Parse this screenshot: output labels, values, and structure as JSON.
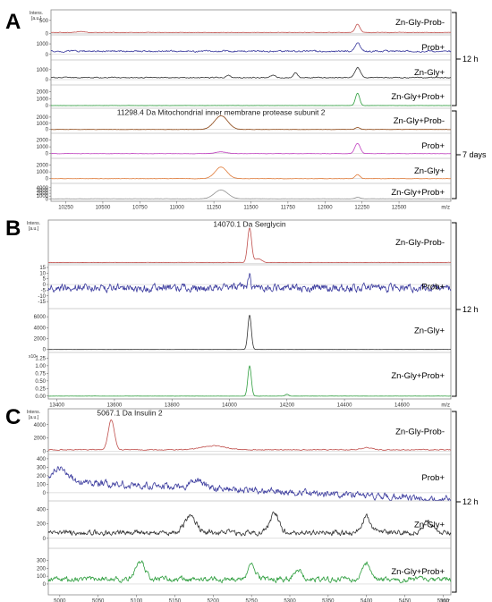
{
  "chart_data": [
    {
      "panel": "A",
      "type": "line",
      "y_axis_caption": [
        "Intens.",
        "[a.u.]"
      ],
      "x_unit": "m/z",
      "xlim": [
        10150,
        12850
      ],
      "x_ticks": [
        10250,
        10500,
        10750,
        11000,
        11250,
        11500,
        11750,
        12000,
        12250,
        12500
      ],
      "annotation": {
        "text": "11298.4 Da Mitochondrial inner membrane protease subunit 2",
        "x": 11298.4
      },
      "groups": [
        {
          "label": "12 h",
          "first": 0,
          "last": 3
        },
        {
          "label": "7 days",
          "first": 4,
          "last": 7
        }
      ],
      "series": [
        {
          "name": "Zn-Gly-Prob-",
          "color": "#c0504d",
          "ylim": [
            0,
            800
          ],
          "y_ticks": [
            0,
            500
          ],
          "baseline": 40,
          "noise": 18,
          "peaks": [
            [
              12220,
              320,
              16
            ],
            [
              10350,
              40,
              25
            ]
          ]
        },
        {
          "name": "Prob+",
          "color": "#3b3b9e",
          "ylim": [
            -400,
            1600
          ],
          "y_ticks": [
            0,
            1000
          ],
          "baseline": 300,
          "noise": 140,
          "peaks": [
            [
              12220,
              800,
              18
            ]
          ]
        },
        {
          "name": "Zn-Gly+",
          "color": "#333333",
          "ylim": [
            -400,
            1700
          ],
          "y_ticks": [
            0,
            1000
          ],
          "baseline": 200,
          "noise": 90,
          "peaks": [
            [
              12220,
              1000,
              18
            ],
            [
              11800,
              500,
              14
            ],
            [
              11650,
              250,
              14
            ],
            [
              11350,
              220,
              14
            ]
          ]
        },
        {
          "name": "Zn-Gly+Prob+",
          "color": "#2e9e3e",
          "ylim": [
            -200,
            2600
          ],
          "y_ticks": [
            0,
            1000,
            2000
          ],
          "baseline": 0,
          "noise": 25,
          "peaks": [
            [
              12220,
              1800,
              14
            ]
          ]
        },
        {
          "name": "Zn-Gly+Prob-",
          "color": "#8b4513",
          "ylim": [
            -400,
            3000
          ],
          "y_ticks": [
            0,
            1000,
            2000
          ],
          "baseline": 0,
          "noise": 40,
          "peaks": [
            [
              11298.4,
              2200,
              45
            ],
            [
              12220,
              300,
              16
            ]
          ]
        },
        {
          "name": "Prob+",
          "color": "#c040c0",
          "ylim": [
            -500,
            2600
          ],
          "y_ticks": [
            0,
            1000,
            2000
          ],
          "baseline": 0,
          "noise": 45,
          "peaks": [
            [
              12220,
              1500,
              18
            ],
            [
              11298.4,
              250,
              40
            ]
          ]
        },
        {
          "name": "Zn-Gly+",
          "color": "#e07b39",
          "ylim": [
            -500,
            2600
          ],
          "y_ticks": [
            0,
            1000,
            2000
          ],
          "baseline": 0,
          "noise": 45,
          "peaks": [
            [
              11298.4,
              1700,
              40
            ],
            [
              12220,
              600,
              16
            ]
          ]
        },
        {
          "name": "Zn-Gly+Prob+",
          "color": "#909090",
          "ylim": [
            -400,
            4600
          ],
          "y_ticks": [
            0,
            1000,
            2000,
            3000,
            4000
          ],
          "baseline": 0,
          "noise": 70,
          "peaks": [
            [
              11298.4,
              3200,
              45
            ],
            [
              12220,
              600,
              16
            ]
          ]
        }
      ]
    },
    {
      "panel": "B",
      "type": "line",
      "y_axis_caption": [
        "Intens.",
        "[a.u.]"
      ],
      "x_unit": "m/z",
      "xlim": [
        13370,
        14770
      ],
      "x_ticks": [
        13400,
        13600,
        13800,
        14000,
        14200,
        14400,
        14600
      ],
      "annotation": {
        "text": "14070.1 Da  Serglycin",
        "x": 14070.1
      },
      "groups": [
        {
          "label": "12 h",
          "first": 0,
          "last": 3
        }
      ],
      "series": [
        {
          "name": "Zn-Gly-Prob-",
          "color": "#c0504d",
          "ylim": [
            0,
            1300
          ],
          "y_ticks": [],
          "baseline": 30,
          "noise": 10,
          "peaks": [
            [
              14070,
              1100,
              7
            ],
            [
              14100,
              120,
              12
            ]
          ]
        },
        {
          "name": "Prob+",
          "color": "#3b3b9e",
          "ylim": [
            -20,
            15
          ],
          "y_ticks": [
            -15,
            -10,
            -5,
            0,
            5,
            10,
            15
          ],
          "baseline": -3,
          "noise": 6,
          "peaks": [
            [
              14070,
              12,
              4
            ]
          ]
        },
        {
          "name": "Zn-Gly+",
          "color": "#333333",
          "ylim": [
            -300,
            7000
          ],
          "y_ticks": [
            0,
            2000,
            4000,
            6000
          ],
          "baseline": 0,
          "noise": 20,
          "peaks": [
            [
              14070,
              6300,
              6
            ]
          ]
        },
        {
          "name": "Zn-Gly+Prob+",
          "color": "#2e9e3e",
          "ylim": [
            -0.05,
            1.35
          ],
          "y_ticks": [
            0,
            0.25,
            0.5,
            0.75,
            1,
            1.25
          ],
          "y_tick_labels": [
            "0.00",
            "0.25",
            "0.50",
            "0.75",
            "1.00",
            "1.25"
          ],
          "y_multiplier": "x10⁴",
          "baseline": 0,
          "noise": 0.005,
          "peaks": [
            [
              14070,
              1.0,
              6
            ],
            [
              14200,
              0.06,
              6
            ]
          ]
        }
      ]
    },
    {
      "panel": "C",
      "type": "line",
      "y_axis_caption": [
        "Intens.",
        "[a.u.]"
      ],
      "x_unit": "m/z",
      "xlim": [
        4985,
        5510
      ],
      "x_ticks": [
        5000,
        5050,
        5100,
        5150,
        5200,
        5250,
        5300,
        5350,
        5400,
        5450,
        5500
      ],
      "annotation": {
        "text": "5067.1 Da Insulin 2",
        "x": 5067.1
      },
      "groups": [
        {
          "label": "12 h",
          "first": 0,
          "last": 3
        }
      ],
      "series": [
        {
          "name": "Zn-Gly-Prob-",
          "color": "#c0504d",
          "ylim": [
            -300,
            6000
          ],
          "y_ticks": [
            0,
            2000,
            4000
          ],
          "baseline": 200,
          "noise": 120,
          "peaks": [
            [
              5067.1,
              4500,
              4
            ],
            [
              5200,
              600,
              15
            ],
            [
              5400,
              300,
              8
            ]
          ]
        },
        {
          "name": "Prob+",
          "color": "#3b3b9e",
          "ylim": [
            -80,
            420
          ],
          "y_ticks": [
            0,
            100,
            200,
            300,
            400
          ],
          "baseline": 140,
          "noise": 70,
          "trend": -220,
          "peaks": [
            [
              5000,
              170,
              10
            ],
            [
              5180,
              80,
              8
            ]
          ]
        },
        {
          "name": "Zn-Gly+",
          "color": "#333333",
          "ylim": [
            -120,
            480
          ],
          "y_ticks": [
            0,
            200,
            400
          ],
          "baseline": 80,
          "noise": 70,
          "peaks": [
            [
              5280,
              250,
              6
            ],
            [
              5400,
              220,
              5
            ],
            [
              5170,
              200,
              8
            ],
            [
              5480,
              150,
              6
            ]
          ]
        },
        {
          "name": "Zn-Gly+Prob+",
          "color": "#2e9e3e",
          "ylim": [
            -120,
            420
          ],
          "y_ticks": [
            0,
            100,
            200,
            300
          ],
          "baseline": 60,
          "noise": 60,
          "peaks": [
            [
              5105,
              230,
              6
            ],
            [
              5250,
              180,
              5
            ],
            [
              5400,
              190,
              5
            ],
            [
              5310,
              120,
              5
            ]
          ]
        }
      ]
    }
  ]
}
